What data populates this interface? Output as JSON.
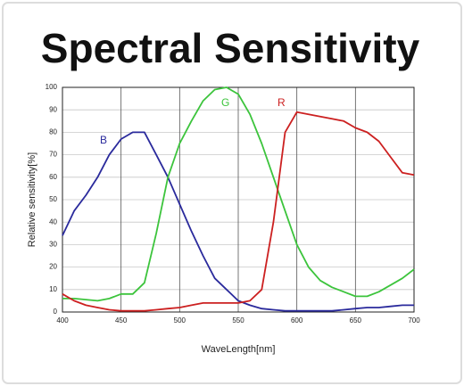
{
  "chart_data": {
    "type": "line",
    "title": "Spectral Sensitivity",
    "x_label": "WaveLength[nm]",
    "y_label": "Relative sensitivity[%]",
    "x": [
      400,
      410,
      420,
      430,
      440,
      450,
      460,
      470,
      480,
      490,
      500,
      510,
      520,
      530,
      540,
      550,
      560,
      570,
      580,
      590,
      600,
      610,
      620,
      630,
      640,
      650,
      660,
      670,
      680,
      690,
      700
    ],
    "series": [
      {
        "name": "B",
        "color": "#2a2a9c",
        "values": [
          34,
          45,
          52,
          60,
          70,
          77,
          80,
          80,
          70,
          60,
          48,
          36,
          25,
          15,
          10,
          5,
          3,
          1.5,
          1,
          0.5,
          0.5,
          0.5,
          0.5,
          0.5,
          1,
          1.5,
          2,
          2,
          2.5,
          3,
          3
        ]
      },
      {
        "name": "G",
        "color": "#3cc43c",
        "values": [
          6,
          6,
          5.5,
          5,
          6,
          8,
          8,
          13,
          35,
          60,
          75,
          85,
          94,
          99,
          100,
          97,
          88,
          75,
          60,
          45,
          30,
          20,
          14,
          11,
          9,
          7,
          7,
          9,
          12,
          15,
          19
        ]
      },
      {
        "name": "R",
        "color": "#cc2020",
        "values": [
          8,
          5,
          3,
          2,
          1,
          0.5,
          0.5,
          0.5,
          1,
          1.5,
          2,
          3,
          4,
          4,
          4,
          4,
          5,
          10,
          40,
          80,
          89,
          88,
          87,
          86,
          85,
          82,
          80,
          76,
          69,
          62,
          61
        ]
      }
    ],
    "xlim": [
      400,
      700
    ],
    "xticks": [
      400,
      450,
      500,
      550,
      600,
      650,
      700
    ],
    "ylim": [
      0,
      100
    ],
    "yticks": [
      0,
      10,
      20,
      30,
      40,
      50,
      60,
      70,
      80,
      90,
      100
    ],
    "grid": true
  }
}
